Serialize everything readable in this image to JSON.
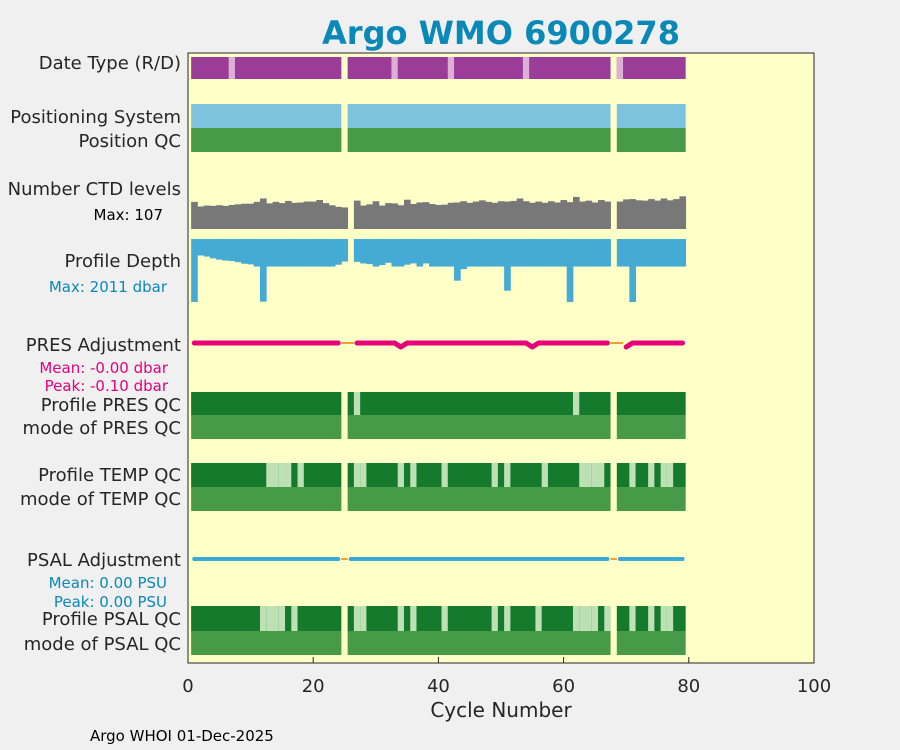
{
  "chart_data": {
    "type": "bar",
    "title": "Argo WMO 6900278",
    "xlabel": "Cycle Number",
    "xlim": [
      0,
      100
    ],
    "xticks": [
      0,
      20,
      40,
      60,
      80,
      100
    ],
    "footer": "Argo WHOI 01-Dec-2025",
    "cycle_range": [
      1,
      79
    ],
    "gaps": [
      25,
      68
    ],
    "colors": {
      "title": "#0a88b8",
      "plot_bg": "#ffffc8",
      "purple": "#9b3d98",
      "light_purple": "#dcafd6",
      "light_blue": "#7dc3de",
      "qc_green": "#479a47",
      "dark_green": "#167a2c",
      "pale_green": "#bde0b5",
      "grey": "#787878",
      "depth_blue": "#45abd4",
      "magenta": "#e6007a",
      "psal_blue": "#3aa9d5",
      "orange": "#f0a030"
    },
    "rows": [
      {
        "key": "date_type",
        "label": "Date Type (R/D)",
        "base_color": "purple",
        "marks": [
          {
            "cycle": 7,
            "color": "light_purple"
          },
          {
            "cycle": 33,
            "color": "light_purple"
          },
          {
            "cycle": 42,
            "color": "light_purple"
          },
          {
            "cycle": 54,
            "color": "light_purple"
          },
          {
            "cycle": 69,
            "color": "light_purple"
          }
        ]
      },
      {
        "key": "positioning_system",
        "label": "Positioning System",
        "base_color": "light_blue",
        "marks": []
      },
      {
        "key": "position_qc",
        "label": "Position QC",
        "base_color": "qc_green",
        "marks": []
      },
      {
        "key": "profile_pres_qc",
        "label": "Profile PRES QC",
        "base_color": "dark_green",
        "marks": [
          {
            "cycle": 27,
            "color": "pale_green"
          },
          {
            "cycle": 62,
            "color": "pale_green"
          }
        ]
      },
      {
        "key": "mode_pres_qc",
        "label": "mode of PRES QC",
        "base_color": "qc_green",
        "marks": []
      },
      {
        "key": "profile_temp_qc",
        "label": "Profile TEMP QC",
        "base_color": "dark_green",
        "marks": [
          {
            "cycle": 13,
            "color": "pale_green"
          },
          {
            "cycle": 14,
            "color": "pale_green"
          },
          {
            "cycle": 15,
            "color": "pale_green"
          },
          {
            "cycle": 16,
            "color": "pale_green"
          },
          {
            "cycle": 18,
            "color": "pale_green"
          },
          {
            "cycle": 27,
            "color": "pale_green"
          },
          {
            "cycle": 28,
            "color": "pale_green"
          },
          {
            "cycle": 34,
            "color": "pale_green"
          },
          {
            "cycle": 36,
            "color": "pale_green"
          },
          {
            "cycle": 41,
            "color": "pale_green"
          },
          {
            "cycle": 49,
            "color": "pale_green"
          },
          {
            "cycle": 51,
            "color": "pale_green"
          },
          {
            "cycle": 57,
            "color": "pale_green"
          },
          {
            "cycle": 63,
            "color": "pale_green"
          },
          {
            "cycle": 64,
            "color": "pale_green"
          },
          {
            "cycle": 65,
            "color": "pale_green"
          },
          {
            "cycle": 66,
            "color": "pale_green"
          },
          {
            "cycle": 71,
            "color": "pale_green"
          },
          {
            "cycle": 74,
            "color": "pale_green"
          },
          {
            "cycle": 76,
            "color": "pale_green"
          },
          {
            "cycle": 77,
            "color": "pale_green"
          }
        ]
      },
      {
        "key": "mode_temp_qc",
        "label": "mode of TEMP QC",
        "base_color": "qc_green",
        "marks": []
      },
      {
        "key": "profile_psal_qc",
        "label": "Profile PSAL QC",
        "base_color": "dark_green",
        "marks": [
          {
            "cycle": 12,
            "color": "pale_green"
          },
          {
            "cycle": 13,
            "color": "pale_green"
          },
          {
            "cycle": 14,
            "color": "pale_green"
          },
          {
            "cycle": 15,
            "color": "pale_green"
          },
          {
            "cycle": 17,
            "color": "pale_green"
          },
          {
            "cycle": 27,
            "color": "pale_green"
          },
          {
            "cycle": 28,
            "color": "pale_green"
          },
          {
            "cycle": 34,
            "color": "pale_green"
          },
          {
            "cycle": 36,
            "color": "pale_green"
          },
          {
            "cycle": 41,
            "color": "pale_green"
          },
          {
            "cycle": 49,
            "color": "pale_green"
          },
          {
            "cycle": 51,
            "color": "pale_green"
          },
          {
            "cycle": 56,
            "color": "pale_green"
          },
          {
            "cycle": 62,
            "color": "pale_green"
          },
          {
            "cycle": 63,
            "color": "pale_green"
          },
          {
            "cycle": 64,
            "color": "pale_green"
          },
          {
            "cycle": 65,
            "color": "pale_green"
          },
          {
            "cycle": 67,
            "color": "pale_green"
          },
          {
            "cycle": 71,
            "color": "pale_green"
          },
          {
            "cycle": 74,
            "color": "pale_green"
          },
          {
            "cycle": 76,
            "color": "pale_green"
          },
          {
            "cycle": 77,
            "color": "pale_green"
          }
        ]
      },
      {
        "key": "mode_psal_qc",
        "label": "mode of PSAL QC",
        "base_color": "qc_green",
        "marks": []
      }
    ],
    "ctd_levels": {
      "label": "Number CTD levels",
      "max_label": "Max: 107",
      "max": 107,
      "values": [
        88,
        73,
        76,
        75,
        77,
        75,
        78,
        80,
        82,
        82,
        88,
        99,
        83,
        88,
        84,
        91,
        85,
        86,
        89,
        89,
        94,
        84,
        77,
        72,
        70,
        null,
        92,
        76,
        80,
        90,
        76,
        84,
        83,
        77,
        95,
        81,
        86,
        87,
        81,
        78,
        79,
        85,
        86,
        90,
        85,
        89,
        93,
        88,
        85,
        90,
        89,
        91,
        99,
        90,
        85,
        89,
        85,
        90,
        86,
        94,
        87,
        104,
        89,
        92,
        86,
        94,
        89,
        null,
        89,
        96,
        97,
        93,
        92,
        97,
        92,
        99,
        93,
        97,
        106
      ]
    },
    "profile_depth": {
      "label": "Profile Depth",
      "max_label": "Max: 2011 dbar",
      "max": 2011,
      "values": [
        2011,
        525,
        560,
        620,
        660,
        690,
        705,
        740,
        790,
        810,
        880,
        2000,
        880,
        880,
        880,
        880,
        880,
        880,
        880,
        880,
        880,
        880,
        880,
        820,
        720,
        null,
        730,
        780,
        800,
        880,
        830,
        760,
        880,
        880,
        820,
        780,
        880,
        780,
        880,
        880,
        880,
        880,
        1330,
        960,
        880,
        880,
        880,
        880,
        880,
        880,
        1650,
        880,
        880,
        880,
        880,
        880,
        880,
        880,
        880,
        880,
        2011,
        880,
        880,
        880,
        880,
        880,
        880,
        null,
        880,
        880,
        2011,
        880,
        880,
        880,
        880,
        880,
        880,
        880,
        880
      ]
    },
    "pres_adjustment": {
      "label": "PRES Adjustment",
      "mean_label": "Mean: -0.00 dbar",
      "peak_label": "Peak: -0.10 dbar",
      "values": [
        0,
        0,
        0,
        0,
        0,
        0,
        0,
        0,
        0,
        0,
        0,
        0,
        0,
        0,
        0,
        0,
        0,
        0,
        0,
        0,
        0,
        0,
        0,
        0,
        null,
        null,
        0,
        0,
        0,
        0,
        0,
        0,
        0,
        -0.1,
        0,
        0,
        0,
        0,
        0,
        0,
        0,
        0,
        0,
        0,
        0,
        0,
        0,
        0,
        0,
        0,
        0,
        0,
        0,
        0,
        -0.1,
        0,
        0,
        0,
        0,
        0,
        0,
        0,
        0,
        0,
        0,
        0,
        0,
        null,
        null,
        -0.1,
        0,
        0,
        0,
        0,
        0,
        0,
        0,
        0,
        0
      ]
    },
    "psal_adjustment": {
      "label": "PSAL Adjustment",
      "mean_label": "Mean: 0.00 PSU",
      "peak_label": "Peak: 0.00 PSU"
    }
  }
}
